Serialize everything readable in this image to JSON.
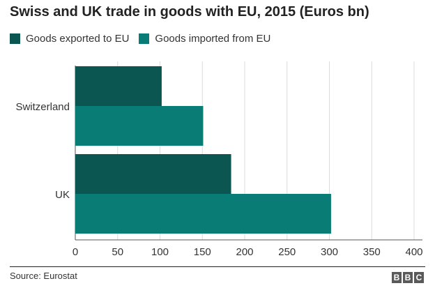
{
  "title": "Swiss and UK trade in goods with EU, 2015 (Euros bn)",
  "legend": [
    {
      "label": "Goods exported to EU",
      "color": "#0b5651"
    },
    {
      "label": "Goods imported from EU",
      "color": "#0a7c76"
    }
  ],
  "source": "Source: Eurostat",
  "logo": [
    "B",
    "B",
    "C"
  ],
  "chart_data": {
    "type": "bar",
    "orientation": "horizontal",
    "title": "Swiss and UK trade in goods with EU, 2015 (Euros bn)",
    "categories": [
      "Switzerland",
      "UK"
    ],
    "series": [
      {
        "name": "Goods exported to EU",
        "color": "#0b5651",
        "values": [
          102,
          184
        ]
      },
      {
        "name": "Goods imported from EU",
        "color": "#0a7c76",
        "values": [
          151,
          302
        ]
      }
    ],
    "xlim": [
      0,
      400
    ],
    "ticks": [
      0,
      50,
      100,
      150,
      200,
      250,
      300,
      350,
      400
    ],
    "grid": true,
    "legend_position": "top-left"
  }
}
